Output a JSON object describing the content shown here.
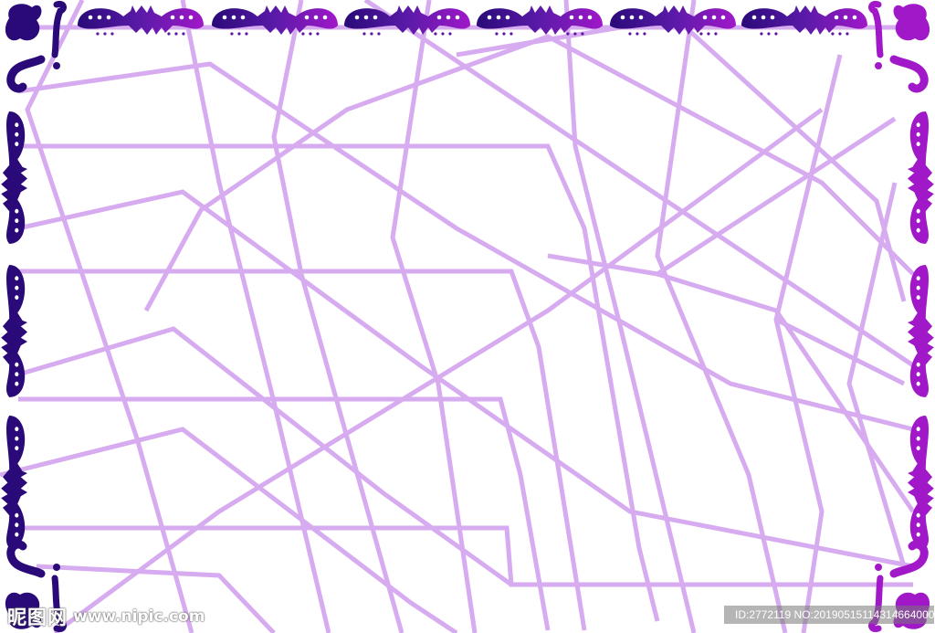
{
  "colors": {
    "ornament_left": "#2a0a78",
    "ornament_mid": "#5a1aa8",
    "ornament_right": "#a018c8",
    "lattice": "#d7abef",
    "background": "#ffffff"
  },
  "watermark": {
    "logo_text": "昵图网",
    "url": "www.nipic.com",
    "id_text": "ID:2772119 NO:20190515114314664000"
  }
}
